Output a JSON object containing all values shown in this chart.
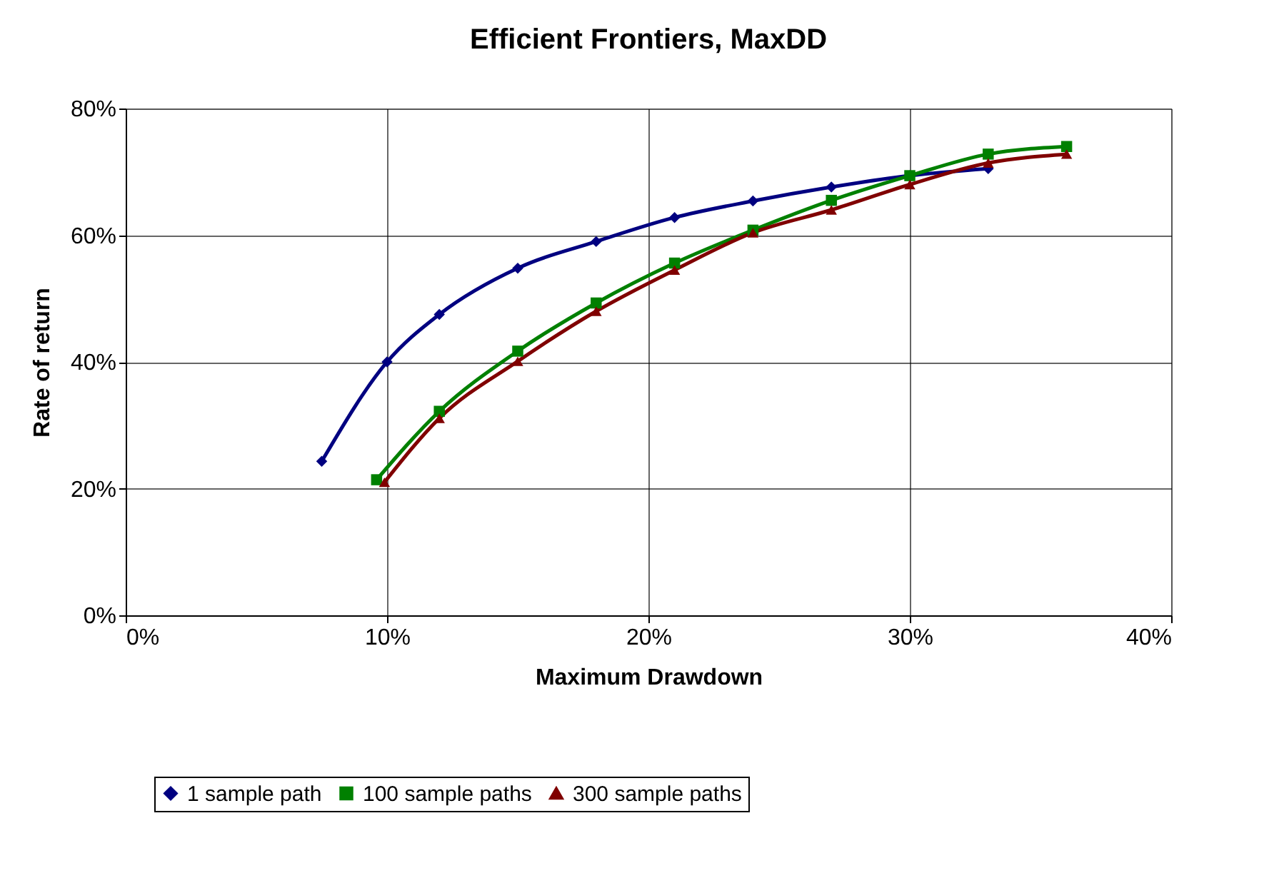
{
  "chart_data": {
    "type": "line",
    "title": "Efficient Frontiers, MaxDD",
    "xlabel": "Maximum Drawdown",
    "ylabel": "Rate of return",
    "xlim": [
      0,
      40
    ],
    "ylim": [
      0,
      80
    ],
    "xticks": [
      {
        "value": 0,
        "label": "0%"
      },
      {
        "value": 10,
        "label": "10%"
      },
      {
        "value": 20,
        "label": "20%"
      },
      {
        "value": 30,
        "label": "30%"
      },
      {
        "value": 40,
        "label": "40%"
      }
    ],
    "yticks": [
      {
        "value": 0,
        "label": "0%"
      },
      {
        "value": 20,
        "label": "20%"
      },
      {
        "value": 40,
        "label": "40%"
      },
      {
        "value": 60,
        "label": "60%"
      },
      {
        "value": 80,
        "label": "80%"
      }
    ],
    "grid": true,
    "legend": "bottom",
    "line_style": "solid",
    "series": [
      {
        "name": "1 sample path",
        "color": "#000080",
        "marker": "diamond",
        "x": [
          7.5,
          10,
          12,
          15,
          18,
          21,
          24,
          27,
          30,
          33
        ],
        "values": [
          24.3,
          40,
          47.5,
          54.8,
          59,
          62.8,
          65.4,
          67.6,
          69.4,
          70.5
        ]
      },
      {
        "name": "100 sample paths",
        "color": "#008000",
        "marker": "square",
        "x": [
          9.6,
          12,
          15,
          18,
          21,
          24,
          27,
          30,
          33,
          36
        ],
        "values": [
          21.4,
          32.2,
          41.7,
          49.3,
          55.6,
          60.8,
          65.5,
          69.4,
          72.8,
          74
        ]
      },
      {
        "name": "300 sample paths",
        "color": "#800000",
        "marker": "triangle",
        "x": [
          9.9,
          12,
          15,
          18,
          21,
          24,
          27,
          30,
          33,
          36
        ],
        "values": [
          21,
          31.1,
          40.1,
          48,
          54.5,
          60.4,
          64,
          68,
          71.4,
          72.8
        ]
      }
    ]
  }
}
